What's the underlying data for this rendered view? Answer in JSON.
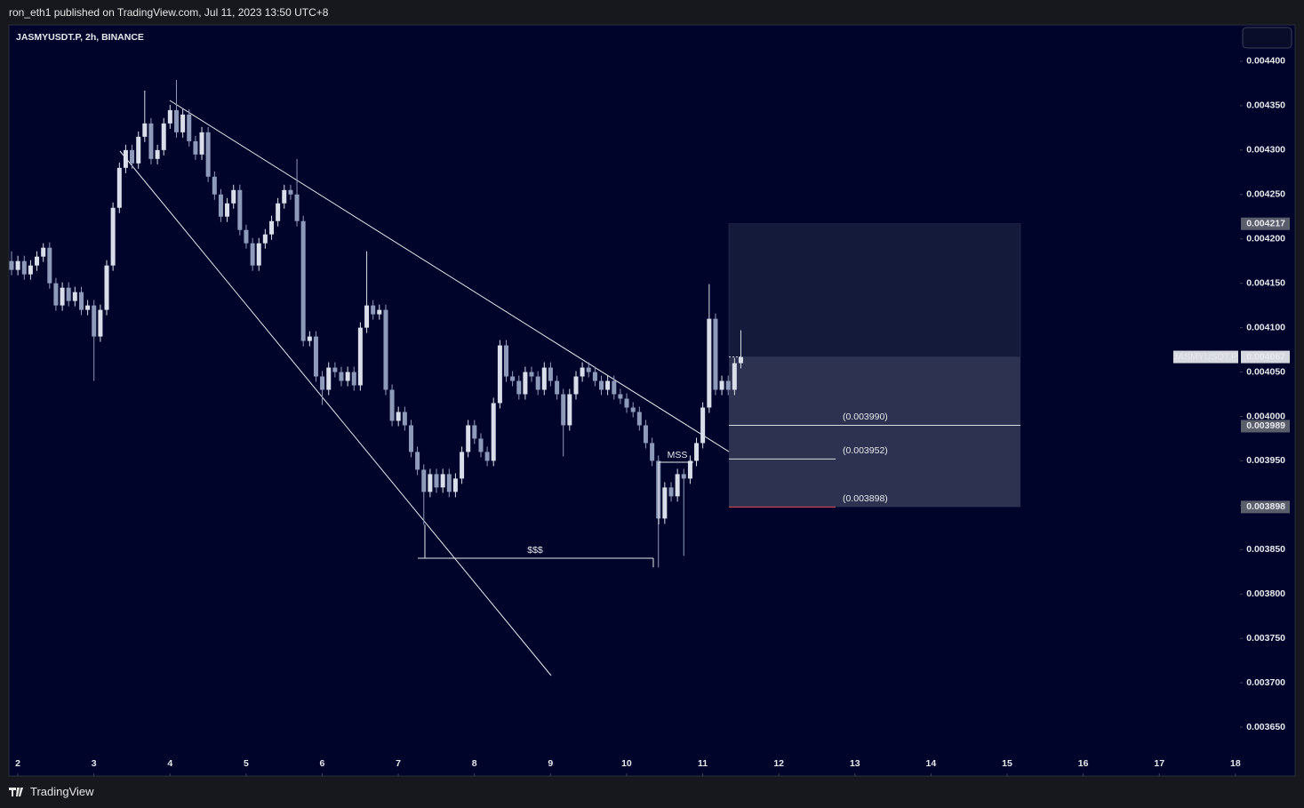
{
  "header": {
    "publisher": "ron_eth1 published on TradingView.com, Jul 11, 2023 13:50 UTC+8"
  },
  "footer": {
    "brand": "TradingView"
  },
  "chart_data": {
    "type": "candlestick",
    "title": "JASMYUSDT.P, 2h, BINANCE",
    "up_color": "#d9deea",
    "down_color": "#8e9aba",
    "xlim": [
      1.883,
      18.06
    ],
    "xticks": [
      2,
      3,
      4,
      5,
      6,
      7,
      8,
      9,
      10,
      11,
      12,
      13,
      14,
      15,
      16,
      17,
      18
    ],
    "ylim": [
      0.003595,
      0.004441
    ],
    "yticks": [
      {
        "value": 0.0044,
        "label": "0.004400"
      },
      {
        "value": 0.00435,
        "label": "0.004350"
      },
      {
        "value": 0.0043,
        "label": "0.004300"
      },
      {
        "value": 0.00425,
        "label": "0.004250"
      },
      {
        "value": 0.0042,
        "label": "0.004200"
      },
      {
        "value": 0.00415,
        "label": "0.004150"
      },
      {
        "value": 0.0041,
        "label": "0.004100"
      },
      {
        "value": 0.00405,
        "label": "0.004050"
      },
      {
        "value": 0.004,
        "label": "0.004000"
      },
      {
        "value": 0.00395,
        "label": "0.003950"
      },
      {
        "value": 0.0039,
        "label": "0.003900"
      },
      {
        "value": 0.00385,
        "label": "0.003850"
      },
      {
        "value": 0.0038,
        "label": "0.003800"
      },
      {
        "value": 0.00375,
        "label": "0.003750"
      },
      {
        "value": 0.0037,
        "label": "0.003700"
      },
      {
        "value": 0.00365,
        "label": "0.003650"
      }
    ],
    "x": [
      1.918,
      2.001,
      2.085,
      2.168,
      2.251,
      2.335,
      2.418,
      2.501,
      2.585,
      2.668,
      2.751,
      2.835,
      2.918,
      3.001,
      3.085,
      3.168,
      3.251,
      3.335,
      3.418,
      3.501,
      3.585,
      3.668,
      3.751,
      3.835,
      3.918,
      4.001,
      4.085,
      4.168,
      4.251,
      4.335,
      4.418,
      4.501,
      4.585,
      4.668,
      4.751,
      4.835,
      4.918,
      5.001,
      5.085,
      5.168,
      5.251,
      5.335,
      5.418,
      5.501,
      5.585,
      5.668,
      5.751,
      5.835,
      5.918,
      6.001,
      6.085,
      6.168,
      6.251,
      6.335,
      6.418,
      6.501,
      6.585,
      6.668,
      6.751,
      6.835,
      6.918,
      7.001,
      7.085,
      7.168,
      7.251,
      7.335,
      7.418,
      7.501,
      7.585,
      7.668,
      7.751,
      7.835,
      7.918,
      8.001,
      8.085,
      8.168,
      8.251,
      8.335,
      8.418,
      8.501,
      8.585,
      8.668,
      8.751,
      8.835,
      8.918,
      9.001,
      9.085,
      9.168,
      9.251,
      9.335,
      9.418,
      9.501,
      9.585,
      9.668,
      9.751,
      9.835,
      9.918,
      10.001,
      10.085,
      10.168,
      10.251,
      10.335,
      10.418,
      10.501,
      10.585,
      10.668,
      10.751,
      10.835,
      10.918,
      11.001,
      11.085,
      11.168,
      11.251,
      11.335,
      11.418,
      11.501
    ],
    "open": [
      0.004175,
      0.004165,
      0.004175,
      0.00416,
      0.00417,
      0.00418,
      0.00419,
      0.00415,
      0.004125,
      0.004145,
      0.00413,
      0.00414,
      0.00412,
      0.004125,
      0.00409,
      0.00412,
      0.00417,
      0.004235,
      0.00428,
      0.0043,
      0.004285,
      0.004315,
      0.00433,
      0.00429,
      0.0043,
      0.00433,
      0.004345,
      0.00432,
      0.00434,
      0.00431,
      0.004295,
      0.00432,
      0.00427,
      0.00425,
      0.004225,
      0.00424,
      0.004255,
      0.00421,
      0.004195,
      0.00417,
      0.004195,
      0.004205,
      0.00422,
      0.00424,
      0.004255,
      0.00425,
      0.00422,
      0.004085,
      0.00409,
      0.004045,
      0.00403,
      0.004055,
      0.00405,
      0.00404,
      0.00405,
      0.004035,
      0.0041,
      0.004125,
      0.004115,
      0.00412,
      0.00403,
      0.003995,
      0.004005,
      0.00399,
      0.00396,
      0.00394,
      0.003915,
      0.003935,
      0.00392,
      0.003935,
      0.003915,
      0.00393,
      0.00396,
      0.00399,
      0.003975,
      0.00396,
      0.00395,
      0.004015,
      0.00408,
      0.004045,
      0.00404,
      0.004025,
      0.00405,
      0.004045,
      0.00403,
      0.004055,
      0.00404,
      0.004025,
      0.00399,
      0.004025,
      0.004045,
      0.004055,
      0.00405,
      0.00404,
      0.00403,
      0.00404,
      0.004025,
      0.00402,
      0.00401,
      0.004005,
      0.00399,
      0.00397,
      0.00395,
      0.003885,
      0.00392,
      0.00391,
      0.003935,
      0.00393,
      0.00395,
      0.00397,
      0.00401,
      0.00411,
      0.00403,
      0.00404,
      0.00403,
      0.00406
    ],
    "high": [
      0.004186,
      0.004181,
      0.004181,
      0.004176,
      0.004186,
      0.004195,
      0.004196,
      0.004156,
      0.004151,
      0.004151,
      0.004146,
      0.004146,
      0.004131,
      0.004131,
      0.004126,
      0.004176,
      0.004241,
      0.004286,
      0.004306,
      0.004306,
      0.004321,
      0.004367,
      0.004336,
      0.004306,
      0.004336,
      0.004351,
      0.004379,
      0.004346,
      0.004346,
      0.004316,
      0.004326,
      0.004326,
      0.004276,
      0.004256,
      0.004246,
      0.004261,
      0.004261,
      0.004216,
      0.004201,
      0.004201,
      0.004211,
      0.004226,
      0.004246,
      0.004261,
      0.004261,
      0.00429,
      0.004226,
      0.004096,
      0.004096,
      0.004051,
      0.004061,
      0.004061,
      0.004056,
      0.004056,
      0.004056,
      0.004106,
      0.004186,
      0.004131,
      0.004126,
      0.004126,
      0.004036,
      0.004011,
      0.004011,
      0.003996,
      0.003966,
      0.003946,
      0.003941,
      0.003941,
      0.003941,
      0.003941,
      0.003936,
      0.003966,
      0.003996,
      0.003996,
      0.003981,
      0.003966,
      0.004021,
      0.004086,
      0.004086,
      0.004051,
      0.004046,
      0.004056,
      0.004056,
      0.004051,
      0.004061,
      0.004061,
      0.004046,
      0.004031,
      0.004031,
      0.004051,
      0.004061,
      0.004061,
      0.004056,
      0.004046,
      0.004046,
      0.004046,
      0.004031,
      0.004026,
      0.004016,
      0.004011,
      0.003996,
      0.003976,
      0.003956,
      0.003926,
      0.003926,
      0.003941,
      0.003941,
      0.003956,
      0.003976,
      0.004016,
      0.004149,
      0.004116,
      0.004046,
      0.004046,
      0.004066,
      0.004097
    ],
    "low": [
      0.004159,
      0.004159,
      0.004154,
      0.004154,
      0.004164,
      0.004174,
      0.004144,
      0.004119,
      0.004119,
      0.004124,
      0.004124,
      0.004114,
      0.004114,
      0.00404,
      0.004084,
      0.004114,
      0.004164,
      0.004229,
      0.004274,
      0.004279,
      0.004279,
      0.004309,
      0.004284,
      0.004284,
      0.004294,
      0.004324,
      0.004314,
      0.004314,
      0.004304,
      0.004289,
      0.004289,
      0.004264,
      0.004244,
      0.004219,
      0.004219,
      0.004234,
      0.004204,
      0.004189,
      0.004164,
      0.004164,
      0.004189,
      0.004199,
      0.004214,
      0.004234,
      0.004244,
      0.004214,
      0.004079,
      0.004079,
      0.004039,
      0.004013,
      0.004024,
      0.004044,
      0.004034,
      0.004034,
      0.004029,
      0.004029,
      0.004094,
      0.004109,
      0.004109,
      0.004024,
      0.003989,
      0.003989,
      0.003984,
      0.003954,
      0.003934,
      0.003878,
      0.003909,
      0.003914,
      0.003914,
      0.003909,
      0.003909,
      0.003924,
      0.003954,
      0.003969,
      0.003954,
      0.003944,
      0.003944,
      0.004009,
      0.004039,
      0.004034,
      0.004019,
      0.004019,
      0.004039,
      0.004024,
      0.004024,
      0.004034,
      0.004019,
      0.003955,
      0.003984,
      0.004019,
      0.004039,
      0.004044,
      0.004034,
      0.004024,
      0.004024,
      0.004019,
      0.004014,
      0.004004,
      0.003999,
      0.003984,
      0.003964,
      0.003944,
      0.00383,
      0.003879,
      0.003904,
      0.003904,
      0.003843,
      0.003924,
      0.003944,
      0.003964,
      0.004004,
      0.004024,
      0.004024,
      0.004024,
      0.004024,
      0.004054
    ],
    "close": [
      0.004165,
      0.004175,
      0.00416,
      0.00417,
      0.00418,
      0.00419,
      0.00415,
      0.004125,
      0.004145,
      0.00413,
      0.00414,
      0.00412,
      0.004125,
      0.00409,
      0.00412,
      0.00417,
      0.004235,
      0.00428,
      0.0043,
      0.004285,
      0.004315,
      0.00433,
      0.00429,
      0.0043,
      0.00433,
      0.004345,
      0.00432,
      0.00434,
      0.00431,
      0.004295,
      0.00432,
      0.00427,
      0.00425,
      0.004225,
      0.00424,
      0.004255,
      0.00421,
      0.004195,
      0.00417,
      0.004195,
      0.004205,
      0.00422,
      0.00424,
      0.004255,
      0.00425,
      0.00422,
      0.004085,
      0.00409,
      0.004045,
      0.00403,
      0.004055,
      0.00405,
      0.00404,
      0.00405,
      0.004035,
      0.0041,
      0.004125,
      0.004115,
      0.00412,
      0.00403,
      0.003995,
      0.004005,
      0.00399,
      0.00396,
      0.00394,
      0.003915,
      0.003935,
      0.00392,
      0.003935,
      0.003915,
      0.00393,
      0.00396,
      0.00399,
      0.003975,
      0.00396,
      0.00395,
      0.004015,
      0.00408,
      0.004045,
      0.00404,
      0.004025,
      0.00405,
      0.004045,
      0.00403,
      0.004055,
      0.00404,
      0.004025,
      0.00399,
      0.004025,
      0.004045,
      0.004055,
      0.00405,
      0.00404,
      0.00403,
      0.00404,
      0.004025,
      0.00402,
      0.00401,
      0.004005,
      0.00399,
      0.00397,
      0.00395,
      0.003885,
      0.00392,
      0.00391,
      0.003935,
      0.00393,
      0.00395,
      0.00397,
      0.00401,
      0.00411,
      0.00403,
      0.00404,
      0.00403,
      0.00406,
      0.004067
    ],
    "annotations": {
      "liquidity": "$$$",
      "structure": "MSS"
    },
    "position_levels": [
      {
        "value": 0.00399,
        "label": "(0.003990)",
        "color": "#d6d9e0"
      },
      {
        "value": 0.003952,
        "label": "(0.003952)",
        "color": "#d6d9e0"
      },
      {
        "value": 0.003898,
        "label": "(0.003898)",
        "color": "#e0505a"
      }
    ],
    "price_labels": [
      {
        "value": 0.004217,
        "label": "0.004217"
      },
      {
        "value": 0.003989,
        "label": "0.003989"
      },
      {
        "value": 0.003898,
        "label": "0.003898"
      }
    ],
    "last_price": {
      "name": "JASMYUSDT.P",
      "value": 0.004067,
      "label": "0.004067"
    },
    "target": {
      "value": 0.004217
    }
  }
}
